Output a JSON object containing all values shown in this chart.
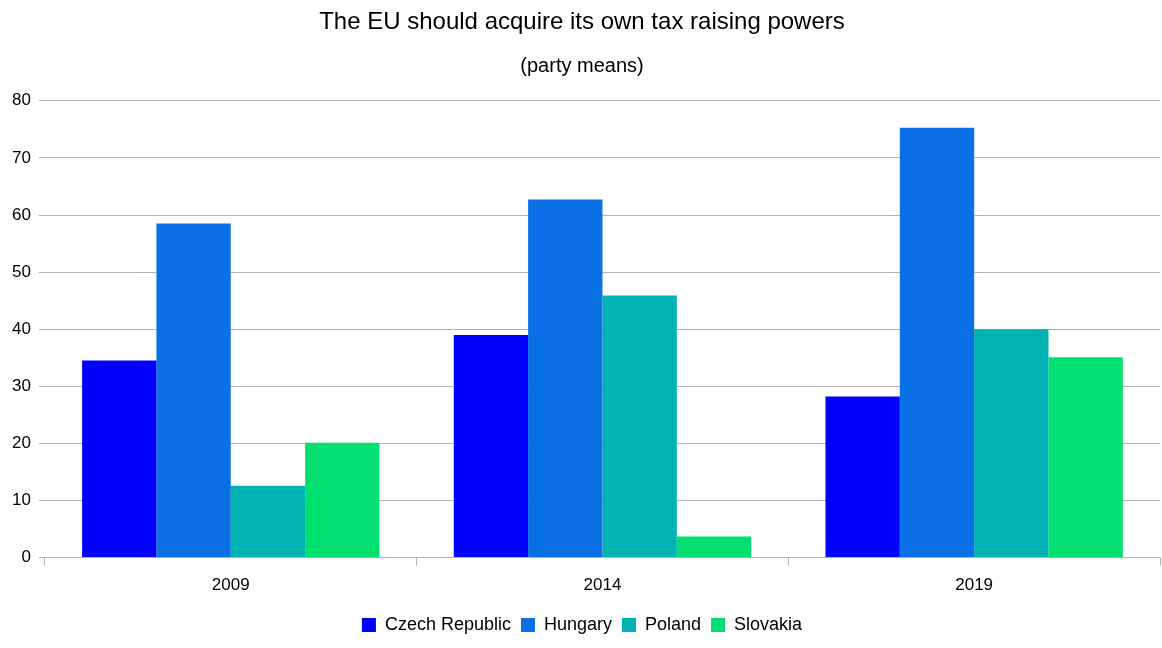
{
  "chart_data": {
    "type": "bar",
    "title": "The EU should acquire its own tax raising powers",
    "subtitle": "(party means)",
    "categories": [
      "2009",
      "2014",
      "2019"
    ],
    "series": [
      {
        "name": "Czech Republic",
        "color": "#0000ff",
        "values": [
          34.5,
          39.0,
          28.2
        ]
      },
      {
        "name": "Hungary",
        "color": "#0a70e6",
        "values": [
          58.5,
          62.7,
          75.3
        ]
      },
      {
        "name": "Poland",
        "color": "#00b2b2",
        "values": [
          12.6,
          45.9,
          40.0
        ]
      },
      {
        "name": "Slovakia",
        "color": "#00e070",
        "values": [
          20.1,
          3.7,
          35.1
        ]
      }
    ],
    "ylim": [
      0,
      80
    ],
    "yticks": [
      0,
      10,
      20,
      30,
      40,
      50,
      60,
      70,
      80
    ],
    "grid": "y",
    "legend": "bottom"
  }
}
